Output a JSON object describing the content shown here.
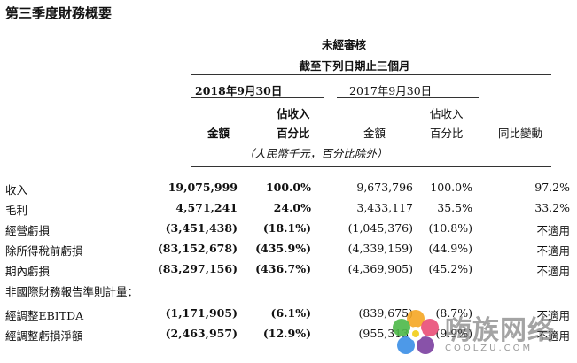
{
  "title": "第三季度財務概要",
  "header": {
    "line1": "未經審核",
    "line2": "截至下列日期止三個月",
    "period_current": "2018年9月30日",
    "period_prior": "2017年9月30日"
  },
  "columns": {
    "cur_amount": "金額",
    "cur_pct_top": "佔收入",
    "cur_pct_bottom": "百分比",
    "prior_amount": "金額",
    "prior_pct_top": "佔收入",
    "prior_pct_bottom": "百分比",
    "yoy": "同比變動"
  },
  "unit_note": "（人民幣千元，百分比除外）",
  "rows": [
    {
      "label": "收入",
      "cur": "19,075,999",
      "cur_pct": "100.0%",
      "prior": "9,673,796",
      "prior_pct": "100.0%",
      "yoy": "97.2%"
    },
    {
      "label": "毛利",
      "cur": "4,571,241",
      "cur_pct": "24.0%",
      "prior": "3,433,117",
      "prior_pct": "35.5%",
      "yoy": "33.2%"
    },
    {
      "label": "經營虧損",
      "cur": "(3,451,438)",
      "cur_pct": "(18.1%)",
      "prior": "(1,045,376)",
      "prior_pct": "(10.8%)",
      "yoy": "不適用"
    },
    {
      "label": "除所得稅前虧損",
      "cur": "(83,152,678)",
      "cur_pct": "(435.9%)",
      "prior": "(4,339,159)",
      "prior_pct": "(44.9%)",
      "yoy": "不適用"
    },
    {
      "label": "期內虧損",
      "cur": "(83,297,156)",
      "cur_pct": "(436.7%)",
      "prior": "(4,369,905)",
      "prior_pct": "(45.2%)",
      "yoy": "不適用"
    }
  ],
  "non_ifrs_heading": "非國際財務報告準則計量：",
  "non_ifrs_rows": [
    {
      "label": "經調整EBITDA",
      "cur": "(1,171,905)",
      "cur_pct": "(6.1%)",
      "prior": "(839,675)",
      "prior_pct": "(8.7%)",
      "yoy": "不適用"
    },
    {
      "label": "經調整虧損淨額",
      "cur": "(2,463,957)",
      "cur_pct": "(12.9%)",
      "prior": "(955,313)",
      "prior_pct": "(9.9%)",
      "yoy": "不適用"
    }
  ],
  "watermark": {
    "text": "嗨族网络",
    "sub": "COOLZU.COM"
  }
}
